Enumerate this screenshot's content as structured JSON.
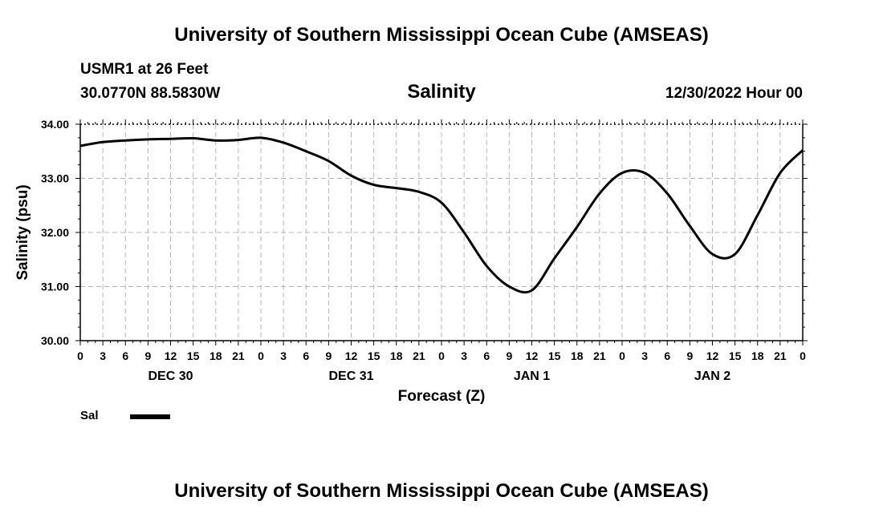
{
  "header": {
    "title": "University of Southern Mississippi Ocean Cube (AMSEAS)",
    "station": "USMR1 at 26 Feet",
    "coords": "30.0770N  88.5830W",
    "date": "12/30/2022 Hour 00"
  },
  "footer": {
    "title": "University of Southern Mississippi Ocean Cube (AMSEAS)"
  },
  "legend": {
    "label": "Sal"
  },
  "chart_data": {
    "type": "line",
    "title": "Salinity",
    "xlabel": "Forecast (Z)",
    "ylabel": "Salinity (psu)",
    "xlim": [
      0,
      96
    ],
    "ylim": [
      30.0,
      34.0
    ],
    "grid": true,
    "y_ticks": [
      "30.00",
      "31.00",
      "32.00",
      "33.00",
      "34.00"
    ],
    "x_tick_labels": [
      "0",
      "3",
      "6",
      "9",
      "12",
      "15",
      "18",
      "21",
      "0",
      "3",
      "6",
      "9",
      "12",
      "15",
      "18",
      "21",
      "0",
      "3",
      "6",
      "9",
      "12",
      "15",
      "18",
      "21",
      "0",
      "3",
      "6",
      "9",
      "12",
      "15",
      "18",
      "21",
      "0"
    ],
    "day_labels": [
      {
        "label": "DEC 30",
        "hour": 12
      },
      {
        "label": "DEC 31",
        "hour": 36
      },
      {
        "label": "JAN 1",
        "hour": 60
      },
      {
        "label": "JAN 2",
        "hour": 84
      }
    ],
    "series": [
      {
        "name": "Sal",
        "x": [
          0,
          3,
          6,
          9,
          12,
          15,
          18,
          21,
          24,
          27,
          30,
          33,
          36,
          39,
          42,
          45,
          48,
          51,
          54,
          57,
          60,
          63,
          66,
          69,
          72,
          75,
          78,
          81,
          84,
          87,
          90,
          93,
          96
        ],
        "values": [
          33.6,
          33.67,
          33.7,
          33.72,
          33.73,
          33.74,
          33.7,
          33.71,
          33.75,
          33.66,
          33.5,
          33.32,
          33.05,
          32.88,
          32.82,
          32.75,
          32.55,
          32.0,
          31.38,
          31.0,
          30.93,
          31.52,
          32.1,
          32.72,
          33.1,
          33.1,
          32.72,
          32.12,
          31.6,
          31.6,
          32.32,
          33.1,
          33.52
        ]
      }
    ]
  }
}
